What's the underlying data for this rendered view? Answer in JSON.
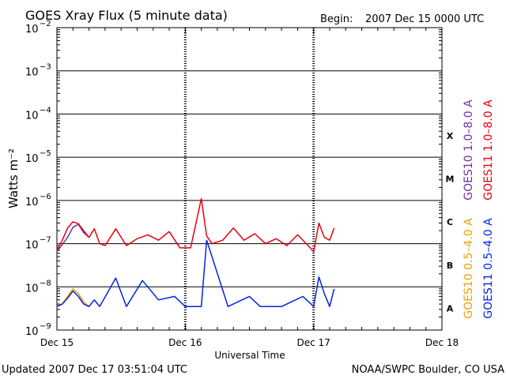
{
  "header": {
    "title": "GOES Xray Flux (5 minute data)",
    "begin_label": "Begin:",
    "begin_value": "2007 Dec 15 0000 UTC"
  },
  "footer": {
    "updated": "Updated 2007 Dec 17 03:51:04 UTC",
    "credit": "NOAA/SWPC Boulder, CO USA"
  },
  "chart_data": {
    "type": "line",
    "title": "GOES Xray Flux (5 minute data)",
    "xlabel": "Universal Time",
    "ylabel": "Watts m⁻²",
    "y_scale": "log",
    "ylim": [
      1e-09,
      0.01
    ],
    "xlim": [
      "2007 Dec 15 00:00 UTC",
      "2007 Dec 18 00:00 UTC"
    ],
    "x_ticks": [
      "Dec 15",
      "Dec 16",
      "Dec 17",
      "Dec 18"
    ],
    "y_ticks": [
      {
        "base": "10",
        "exp": "−9"
      },
      {
        "base": "10",
        "exp": "−8"
      },
      {
        "base": "10",
        "exp": "−7"
      },
      {
        "base": "10",
        "exp": "−6"
      },
      {
        "base": "10",
        "exp": "−5"
      },
      {
        "base": "10",
        "exp": "−4"
      },
      {
        "base": "10",
        "exp": "−3"
      },
      {
        "base": "10",
        "exp": "−2"
      }
    ],
    "flare_classes": [
      "A",
      "B",
      "C",
      "M",
      "X"
    ],
    "grid": "horizontal lines at each decade from 1e-8 to 1e-3; dotted vertical lines at each day",
    "series": [
      {
        "name": "GOES10 1.0–8.0 A",
        "color": "#7030a0",
        "x": [
          "12-15 00:00",
          "12-15 02:00",
          "12-15 03:00",
          "12-15 04:00",
          "12-15 05:00",
          "12-15 06:00"
        ],
        "y": [
          6.5e-08,
          1.4e-07,
          2.4e-07,
          2.8e-07,
          1.8e-07,
          1.4e-07
        ]
      },
      {
        "name": "GOES11 1.0–8.0 A",
        "color": "#e8000e",
        "x": [
          "12-15 00:00",
          "12-15 01:00",
          "12-15 02:00",
          "12-15 03:00",
          "12-15 04:00",
          "12-15 05:00",
          "12-15 06:00",
          "12-15 07:00",
          "12-15 08:00",
          "12-15 09:00",
          "12-15 11:00",
          "12-15 13:00",
          "12-15 15:00",
          "12-15 17:00",
          "12-15 19:00",
          "12-15 21:00",
          "12-15 23:00",
          "12-16 01:00",
          "12-16 03:00",
          "12-16 04:00",
          "12-16 05:00",
          "12-16 07:00",
          "12-16 09:00",
          "12-16 11:00",
          "12-16 13:00",
          "12-16 15:00",
          "12-16 17:00",
          "12-16 19:00",
          "12-16 21:00",
          "12-16 23:00",
          "12-17 00:00",
          "12-17 01:00",
          "12-17 02:00",
          "12-17 03:00",
          "12-17 03:50"
        ],
        "y": [
          7e-08,
          1.2e-07,
          2.3e-07,
          3.2e-07,
          2.9e-07,
          2e-07,
          1.4e-07,
          2.2e-07,
          1e-07,
          9e-08,
          2.2e-07,
          9e-08,
          1.3e-07,
          1.6e-07,
          1.2e-07,
          1.9e-07,
          8e-08,
          8e-08,
          1.1e-06,
          1.5e-07,
          1e-07,
          1.2e-07,
          2.3e-07,
          1.2e-07,
          1.7e-07,
          1e-07,
          1.3e-07,
          9e-08,
          1.6e-07,
          9e-08,
          6.5e-08,
          3e-07,
          1.4e-07,
          1.2e-07,
          2.3e-07
        ]
      },
      {
        "name": "GOES10 0.5–4.0 A",
        "color": "#f0a000",
        "x": [
          "12-15 00:00",
          "12-15 01:00",
          "12-15 02:00",
          "12-15 03:00",
          "12-15 04:00",
          "12-15 05:00",
          "12-15 06:00"
        ],
        "y": [
          3.5e-09,
          4e-09,
          6e-09,
          9e-09,
          7e-09,
          4.5e-09,
          3.5e-09
        ]
      },
      {
        "name": "GOES11 0.5–4.0 A",
        "color": "#0022e8",
        "x": [
          "12-15 00:00",
          "12-15 01:00",
          "12-15 02:00",
          "12-15 03:00",
          "12-15 04:00",
          "12-15 05:00",
          "12-15 06:00",
          "12-15 07:00",
          "12-15 08:00",
          "12-15 11:00",
          "12-15 13:00",
          "12-15 16:00",
          "12-15 19:00",
          "12-15 22:00",
          "12-16 00:00",
          "12-16 03:00",
          "12-16 04:00",
          "12-16 08:00",
          "12-16 12:00",
          "12-16 14:00",
          "12-16 18:00",
          "12-16 22:00",
          "12-17 00:00",
          "12-17 01:00",
          "12-17 02:00",
          "12-17 03:00",
          "12-17 03:50"
        ],
        "y": [
          3.5e-09,
          4e-09,
          5.5e-09,
          8e-09,
          6e-09,
          4e-09,
          3.5e-09,
          5e-09,
          3.5e-09,
          1.6e-08,
          3.5e-09,
          1.4e-08,
          5e-09,
          6e-09,
          3.5e-09,
          3.5e-09,
          1.2e-07,
          3.5e-09,
          6e-09,
          3.5e-09,
          3.5e-09,
          6e-09,
          3.5e-09,
          1.7e-08,
          7e-09,
          3.5e-09,
          9e-09
        ]
      }
    ]
  }
}
